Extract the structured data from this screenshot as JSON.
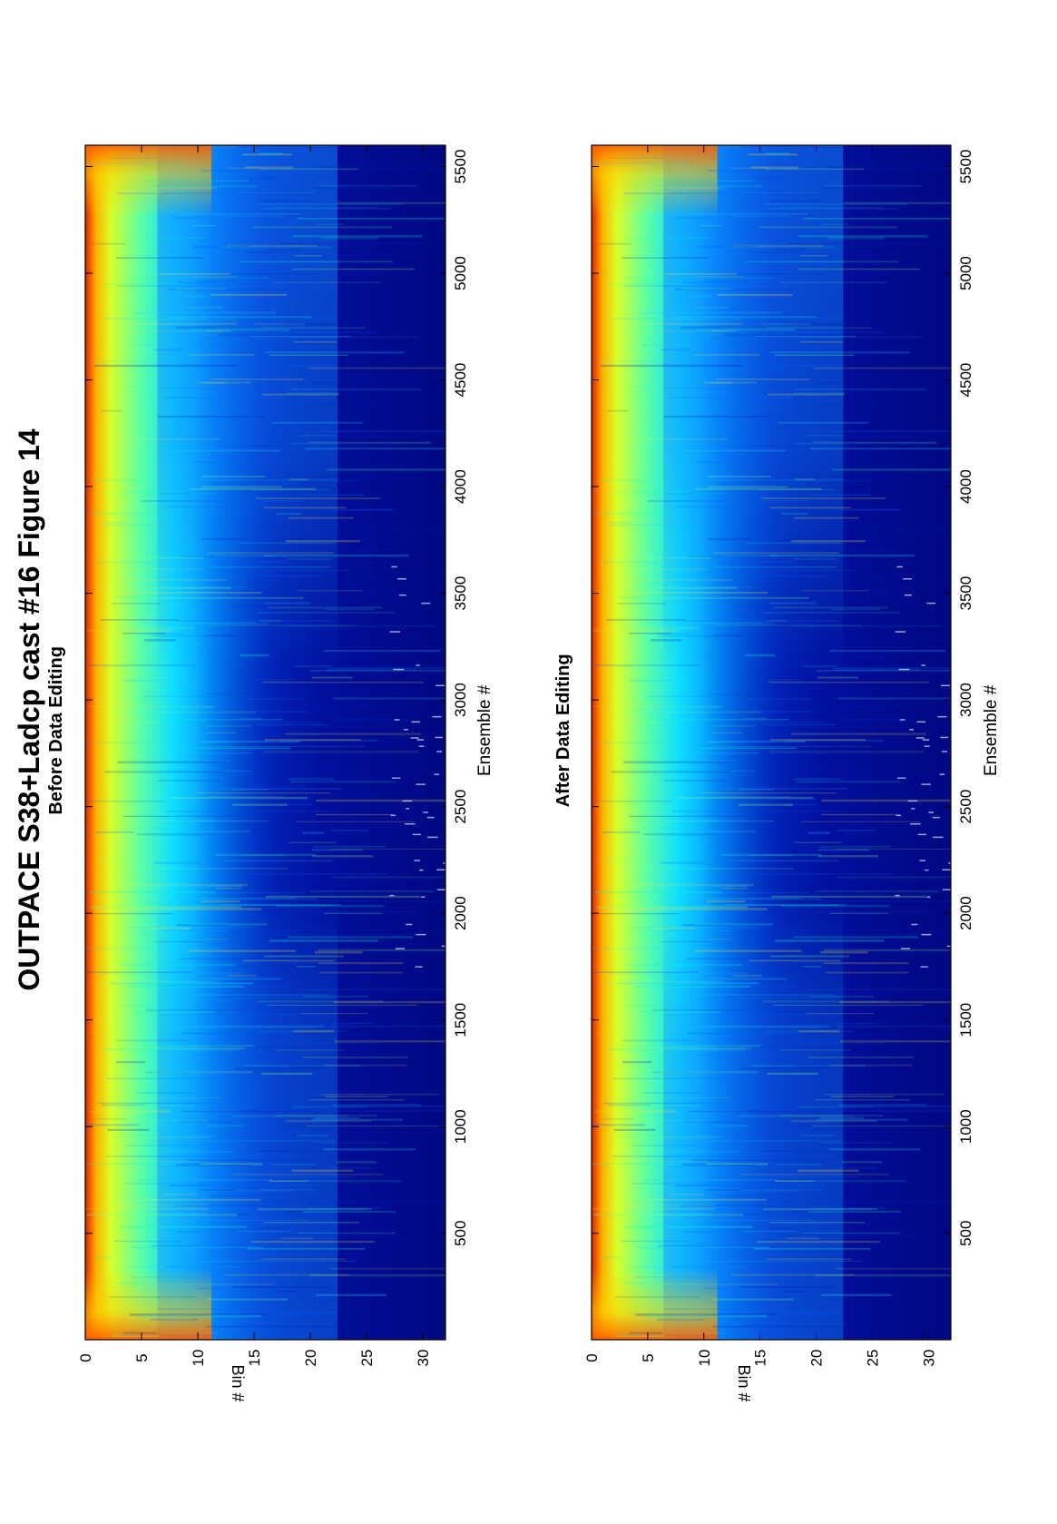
{
  "title": "OUTPACE S38+Ladcp cast #16  Figure 14",
  "chart_data": [
    {
      "type": "heatmap",
      "title": "Before Data Editing",
      "xlabel": "Ensemble #",
      "ylabel": "Bin #",
      "xlim": [
        1,
        5600
      ],
      "ylim": [
        0,
        32
      ],
      "xticks": [
        "500",
        "1000",
        "1500",
        "2000",
        "2500",
        "3000",
        "3500",
        "4000",
        "4500",
        "5000",
        "5500"
      ],
      "yticks": [
        "0",
        "5",
        "10",
        "15",
        "20",
        "25",
        "30"
      ],
      "colormap": "jet",
      "grid": false
    },
    {
      "type": "heatmap",
      "title": "After Data Editing",
      "xlabel": "Ensemble #",
      "ylabel": "Bin #",
      "xlim": [
        1,
        5600
      ],
      "ylim": [
        0,
        32
      ],
      "xticks": [
        "500",
        "1000",
        "1500",
        "2000",
        "2500",
        "3000",
        "3500",
        "4000",
        "4500",
        "5000",
        "5500"
      ],
      "yticks": [
        "0",
        "5",
        "10",
        "15",
        "20",
        "25",
        "30"
      ],
      "colormap": "jet",
      "grid": false
    }
  ]
}
